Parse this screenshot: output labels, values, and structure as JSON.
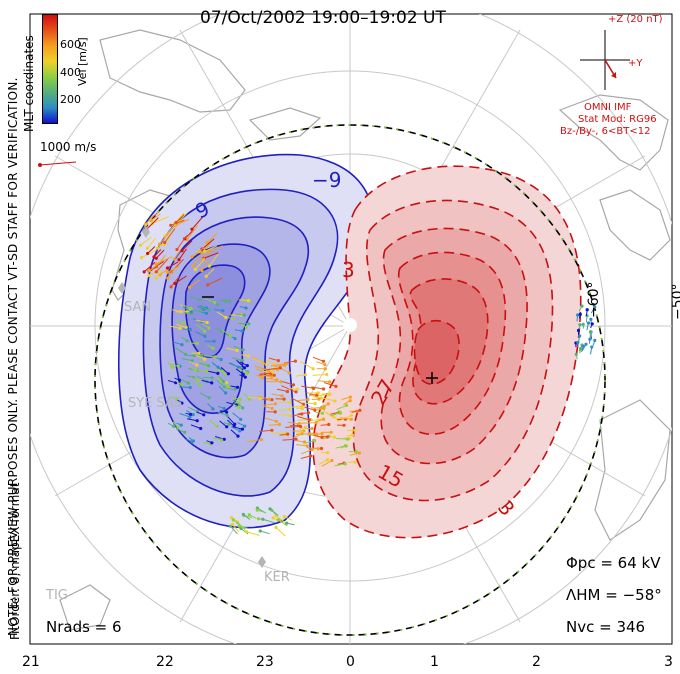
{
  "title": "07/Oct/2002 19:00–19:02 UT",
  "colorbar": {
    "label": "Vel [m/s]",
    "ticks": [
      "600",
      "400",
      "200"
    ],
    "colors": [
      "#1010d0",
      "#2e8ec4",
      "#56b07a",
      "#8ed040",
      "#f0d028",
      "#f4a020",
      "#e85018",
      "#d01010"
    ]
  },
  "coord_label": "MLT coordinates",
  "vector_scale_label": "1000 m/s",
  "note": "NOTE: FOR PREVIEW PURPOSES ONLY. PLEASE CONTACT VT-SD STAFF FOR VERIFICATION.",
  "fit_label": "FitOrder: 8, mapEX format",
  "imf": {
    "z_label": "+Z (20 nT)",
    "y_label": "+Y",
    "source": "OMNI IMF",
    "model": "Stat Mod: RG96",
    "condition": "Bz-/By-, 6<BT<12"
  },
  "stats": {
    "phi_pc": "Φpc = 64 kV",
    "lambda_hm": "ΛHM = −58°",
    "n_vc": "Nvc = 346",
    "n_rads": "Nrads = 6"
  },
  "mlt_axis": [
    "21",
    "22",
    "23",
    "0",
    "1",
    "2",
    "3"
  ],
  "lat_labels": [
    "−50°",
    "−60°"
  ],
  "contour_labels": [
    "−9",
    "9",
    "3",
    "27",
    "15",
    "3",
    "−"
  ],
  "stations": [
    "SAN",
    "SYE SAS",
    "KER",
    "TIG"
  ],
  "colors": {
    "negative_cell": "#2020c0",
    "positive_cell": "#c81010",
    "hm_boundary": "#7ad030"
  }
}
